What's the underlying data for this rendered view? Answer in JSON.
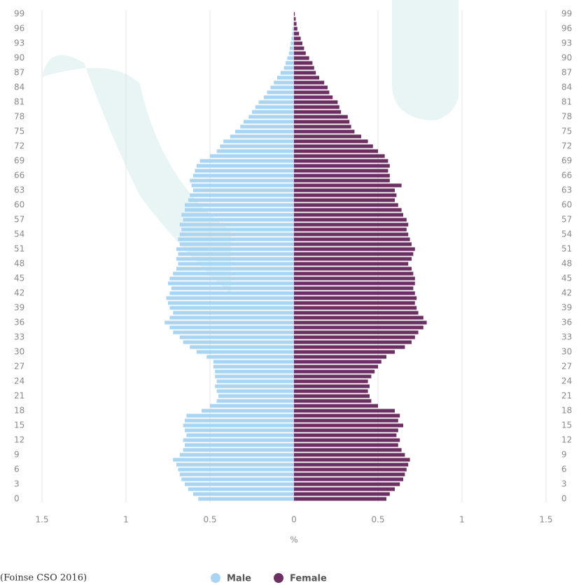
{
  "chart_data": {
    "type": "pyramid",
    "x_label": "%",
    "source": "(Foinse CSO 2016)",
    "categories": [
      "0",
      null,
      null,
      "3",
      null,
      null,
      "6",
      null,
      null,
      "9",
      null,
      null,
      "12",
      null,
      null,
      "15",
      null,
      null,
      "18",
      null,
      null,
      "21",
      null,
      null,
      "24",
      null,
      null,
      "27",
      null,
      null,
      "30",
      null,
      null,
      "33",
      null,
      null,
      "36",
      null,
      null,
      "39",
      null,
      null,
      "42",
      null,
      null,
      "45",
      null,
      null,
      "48",
      null,
      null,
      "51",
      null,
      null,
      "54",
      null,
      null,
      "57",
      null,
      null,
      "60",
      null,
      null,
      "63",
      null,
      null,
      "66",
      null,
      null,
      "69",
      null,
      null,
      "72",
      null,
      null,
      "75",
      null,
      null,
      "78",
      null,
      null,
      "81",
      null,
      null,
      "84",
      null,
      null,
      "87",
      null,
      null,
      "90",
      null,
      null,
      "93",
      null,
      null,
      "96",
      null,
      null,
      "99"
    ],
    "series": [
      {
        "name": "Male",
        "color": "#a9d5f2",
        "values": [
          -0.57,
          -0.6,
          -0.63,
          -0.65,
          -0.67,
          -0.68,
          -0.69,
          -0.7,
          -0.72,
          -0.68,
          -0.66,
          -0.65,
          -0.66,
          -0.64,
          -0.65,
          -0.66,
          -0.65,
          -0.64,
          -0.55,
          -0.5,
          -0.46,
          -0.45,
          -0.46,
          -0.47,
          -0.46,
          -0.47,
          -0.47,
          -0.48,
          -0.48,
          -0.52,
          -0.58,
          -0.62,
          -0.66,
          -0.68,
          -0.72,
          -0.74,
          -0.77,
          -0.74,
          -0.72,
          -0.74,
          -0.75,
          -0.76,
          -0.74,
          -0.73,
          -0.75,
          -0.74,
          -0.72,
          -0.7,
          -0.69,
          -0.7,
          -0.69,
          -0.7,
          -0.68,
          -0.69,
          -0.68,
          -0.67,
          -0.68,
          -0.66,
          -0.67,
          -0.65,
          -0.65,
          -0.63,
          -0.62,
          -0.6,
          -0.61,
          -0.62,
          -0.6,
          -0.59,
          -0.58,
          -0.56,
          -0.5,
          -0.46,
          -0.44,
          -0.42,
          -0.38,
          -0.35,
          -0.32,
          -0.3,
          -0.27,
          -0.25,
          -0.23,
          -0.21,
          -0.18,
          -0.16,
          -0.14,
          -0.12,
          -0.1,
          -0.08,
          -0.06,
          -0.05,
          -0.04,
          -0.03,
          -0.025,
          -0.02,
          -0.015,
          -0.01,
          -0.008,
          -0.005,
          -0.003,
          -0.002
        ]
      },
      {
        "name": "Female",
        "color": "#6b2f62",
        "values": [
          0.55,
          0.57,
          0.6,
          0.63,
          0.65,
          0.66,
          0.67,
          0.68,
          0.69,
          0.66,
          0.64,
          0.62,
          0.63,
          0.61,
          0.62,
          0.65,
          0.62,
          0.63,
          0.6,
          0.5,
          0.46,
          0.45,
          0.44,
          0.45,
          0.44,
          0.46,
          0.48,
          0.5,
          0.52,
          0.55,
          0.6,
          0.66,
          0.7,
          0.72,
          0.74,
          0.77,
          0.79,
          0.77,
          0.74,
          0.73,
          0.72,
          0.73,
          0.72,
          0.71,
          0.72,
          0.72,
          0.71,
          0.7,
          0.68,
          0.7,
          0.71,
          0.72,
          0.7,
          0.69,
          0.68,
          0.67,
          0.68,
          0.67,
          0.65,
          0.64,
          0.62,
          0.6,
          0.61,
          0.6,
          0.64,
          0.57,
          0.57,
          0.56,
          0.57,
          0.56,
          0.54,
          0.5,
          0.47,
          0.44,
          0.4,
          0.36,
          0.34,
          0.33,
          0.32,
          0.28,
          0.27,
          0.26,
          0.23,
          0.21,
          0.2,
          0.18,
          0.15,
          0.13,
          0.12,
          0.11,
          0.09,
          0.07,
          0.06,
          0.05,
          0.04,
          0.03,
          0.02,
          0.015,
          0.01,
          0.005
        ]
      }
    ],
    "xlim": [
      -1.5,
      1.5
    ],
    "xticks": [
      {
        "value": -1.5,
        "label": "1.5"
      },
      {
        "value": -1,
        "label": "1"
      },
      {
        "value": -0.5,
        "label": "0.5"
      },
      0,
      0.5,
      1,
      1.5
    ],
    "grid": true
  }
}
